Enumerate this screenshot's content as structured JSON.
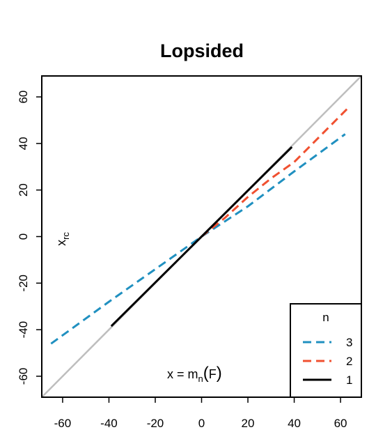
{
  "chart_data": {
    "type": "line",
    "title": "Lopsided",
    "xlim": [
      -69,
      69
    ],
    "ylim": [
      -69,
      69
    ],
    "x_ticks": [
      -60,
      -40,
      -20,
      0,
      20,
      40,
      60
    ],
    "y_ticks": [
      -60,
      -40,
      -20,
      0,
      20,
      40,
      60
    ],
    "x_tick_labels": [
      "-60",
      "-40",
      "-20",
      "0",
      "20",
      "40",
      "60"
    ],
    "y_tick_labels": [
      "-60",
      "-40",
      "-20",
      "0",
      "20",
      "40",
      "60"
    ],
    "ylabel_parts": {
      "base": "x",
      "sub": "rc"
    },
    "xlabel_parts": {
      "lhs": "x = m",
      "sub": "n",
      "arg": "F"
    },
    "legend": {
      "title": "n",
      "position": "bottom-right"
    },
    "reference_line": {
      "type": "identity",
      "color": "#bebebe"
    },
    "series": [
      {
        "name": "3",
        "color": "#2090c0",
        "dash": "dashed",
        "points": [
          [
            -65,
            -46
          ],
          [
            -40,
            -28
          ],
          [
            -20,
            -14
          ],
          [
            0,
            0
          ],
          [
            20,
            13
          ],
          [
            40,
            28
          ],
          [
            62,
            44
          ]
        ]
      },
      {
        "name": "2",
        "color": "#f05030",
        "dash": "dashed",
        "points": [
          [
            0,
            0
          ],
          [
            10,
            8
          ],
          [
            20,
            17
          ],
          [
            30,
            25
          ],
          [
            40,
            32
          ],
          [
            52,
            44
          ],
          [
            64,
            56
          ]
        ]
      },
      {
        "name": "1",
        "color": "#000000",
        "dash": "solid",
        "points": [
          [
            -39,
            -38.5
          ],
          [
            0,
            0
          ],
          [
            39,
            38.5
          ]
        ]
      }
    ]
  }
}
